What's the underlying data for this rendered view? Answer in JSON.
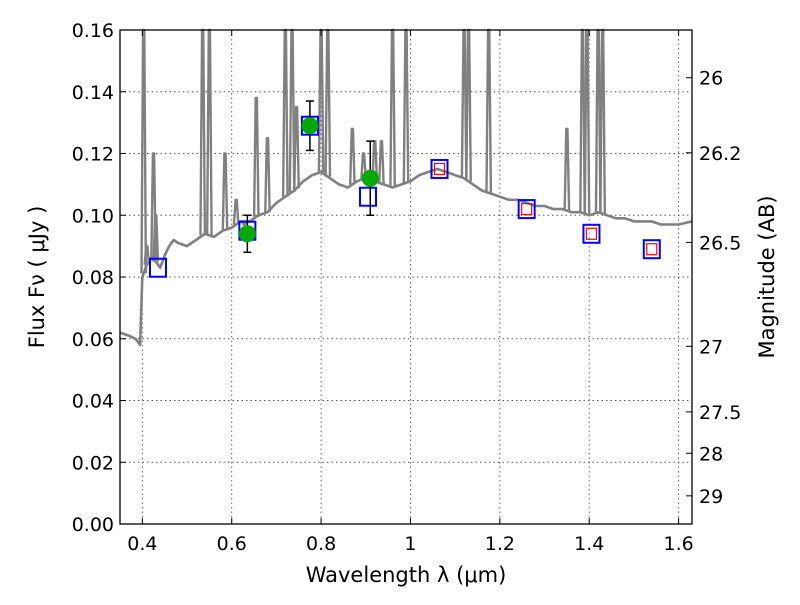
{
  "chart_data": {
    "type": "scatter",
    "xlabel": "Wavelength  λ (μm)",
    "ylabel": "Flux  Fν  ( μJy )",
    "y2label": "Magnitude (AB)",
    "xlim": [
      0.35,
      1.63
    ],
    "ylim": [
      0.0,
      0.16
    ],
    "grid": true,
    "x_ticks": [
      0.4,
      0.6,
      0.8,
      1.0,
      1.2,
      1.4,
      1.6
    ],
    "x_tick_labels": [
      "0.4",
      "0.6",
      "0.8",
      "1",
      "1.2",
      "1.4",
      "1.6"
    ],
    "y_ticks": [
      0.0,
      0.02,
      0.04,
      0.06,
      0.08,
      0.1,
      0.12,
      0.14,
      0.16
    ],
    "y_tick_labels": [
      "0.00",
      "0.02",
      "0.04",
      "0.06",
      "0.08",
      "0.10",
      "0.12",
      "0.14",
      "0.16"
    ],
    "mag_ticks": [
      26,
      26.2,
      26.5,
      27,
      27.5,
      28,
      29
    ],
    "mag_tick_labels": [
      "26",
      "26.2",
      "26.5",
      "27",
      "27.5",
      "28",
      "29"
    ],
    "colors": {
      "model": "#808080",
      "observed": "#00aa00",
      "model_band": "#0000ff",
      "predicted_inner": "#ff0000",
      "errorbar": "#000000"
    },
    "series": [
      {
        "type": "line",
        "x": [
          0.35,
          0.37,
          0.385,
          0.395,
          0.4,
          0.405,
          0.41,
          0.42,
          0.43,
          0.44,
          0.45,
          0.46,
          0.47,
          0.48,
          0.5,
          0.52,
          0.54,
          0.56,
          0.58,
          0.6,
          0.62,
          0.64,
          0.66,
          0.68,
          0.7,
          0.72,
          0.74,
          0.76,
          0.78,
          0.8,
          0.82,
          0.84,
          0.86,
          0.88,
          0.9,
          0.92,
          0.94,
          0.96,
          0.98,
          1.0,
          1.02,
          1.04,
          1.06,
          1.08,
          1.1,
          1.12,
          1.14,
          1.16,
          1.18,
          1.2,
          1.22,
          1.24,
          1.26,
          1.28,
          1.3,
          1.32,
          1.34,
          1.36,
          1.38,
          1.4,
          1.42,
          1.44,
          1.46,
          1.48,
          1.5,
          1.52,
          1.54,
          1.56,
          1.58,
          1.6,
          1.63
        ],
        "values": [
          0.062,
          0.061,
          0.06,
          0.058,
          0.08,
          0.082,
          0.084,
          0.086,
          0.085,
          0.083,
          0.087,
          0.09,
          0.092,
          0.091,
          0.09,
          0.092,
          0.094,
          0.093,
          0.095,
          0.096,
          0.098,
          0.098,
          0.1,
          0.101,
          0.104,
          0.106,
          0.108,
          0.111,
          0.113,
          0.114,
          0.112,
          0.11,
          0.109,
          0.111,
          0.112,
          0.111,
          0.11,
          0.109,
          0.11,
          0.111,
          0.113,
          0.114,
          0.115,
          0.114,
          0.113,
          0.112,
          0.11,
          0.108,
          0.107,
          0.106,
          0.105,
          0.105,
          0.104,
          0.103,
          0.103,
          0.102,
          0.102,
          0.101,
          0.101,
          0.1,
          0.101,
          0.1,
          0.099,
          0.099,
          0.098,
          0.098,
          0.098,
          0.097,
          0.097,
          0.097,
          0.098
        ],
        "spikes": [
          {
            "x": 0.403,
            "values": [
              0.16
            ]
          },
          {
            "x": 0.41,
            "values": [
              0.09
            ]
          },
          {
            "x": 0.425,
            "values": [
              0.12
            ]
          },
          {
            "x": 0.43,
            "values": [
              0.1
            ]
          },
          {
            "x": 0.535,
            "values": [
              0.16
            ]
          },
          {
            "x": 0.55,
            "values": [
              0.16
            ]
          },
          {
            "x": 0.585,
            "values": [
              0.12
            ]
          },
          {
            "x": 0.61,
            "values": [
              0.105
            ]
          },
          {
            "x": 0.628,
            "values": [
              0.097
            ]
          },
          {
            "x": 0.655,
            "values": [
              0.138
            ]
          },
          {
            "x": 0.68,
            "values": [
              0.125
            ]
          },
          {
            "x": 0.72,
            "values": [
              0.16
            ]
          },
          {
            "x": 0.735,
            "values": [
              0.16
            ]
          },
          {
            "x": 0.745,
            "values": [
              0.135
            ]
          },
          {
            "x": 0.8,
            "values": [
              0.16
            ]
          },
          {
            "x": 0.815,
            "values": [
              0.16
            ]
          },
          {
            "x": 0.87,
            "values": [
              0.128
            ]
          },
          {
            "x": 0.895,
            "values": [
              0.12
            ]
          },
          {
            "x": 0.92,
            "values": [
              0.124
            ]
          },
          {
            "x": 0.935,
            "values": [
              0.124
            ]
          },
          {
            "x": 0.96,
            "values": [
              0.16
            ]
          },
          {
            "x": 0.99,
            "values": [
              0.16
            ]
          },
          {
            "x": 1.12,
            "values": [
              0.16
            ]
          },
          {
            "x": 1.13,
            "values": [
              0.16
            ]
          },
          {
            "x": 1.175,
            "values": [
              0.16
            ]
          },
          {
            "x": 1.35,
            "values": [
              0.128
            ]
          },
          {
            "x": 1.385,
            "values": [
              0.16
            ]
          },
          {
            "x": 1.395,
            "values": [
              0.16
            ]
          },
          {
            "x": 1.42,
            "values": [
              0.16
            ]
          },
          {
            "x": 1.43,
            "values": [
              0.16
            ]
          }
        ]
      },
      {
        "type": "scatter",
        "marker": "circle",
        "x": [
          0.635,
          0.775,
          0.91
        ],
        "values": [
          0.094,
          0.129,
          0.112
        ],
        "yerr": [
          0.006,
          0.008,
          0.012
        ]
      },
      {
        "type": "scatter",
        "marker": "square",
        "x": [
          0.435,
          0.635,
          0.775,
          0.905,
          1.065,
          1.26,
          1.405,
          1.54
        ],
        "values": [
          0.083,
          0.095,
          0.129,
          0.106,
          0.115,
          0.102,
          0.094,
          0.089
        ]
      },
      {
        "type": "scatter",
        "marker": "square-small",
        "x": [
          1.065,
          1.26,
          1.405,
          1.54
        ],
        "values": [
          0.115,
          0.102,
          0.094,
          0.089
        ]
      }
    ]
  }
}
